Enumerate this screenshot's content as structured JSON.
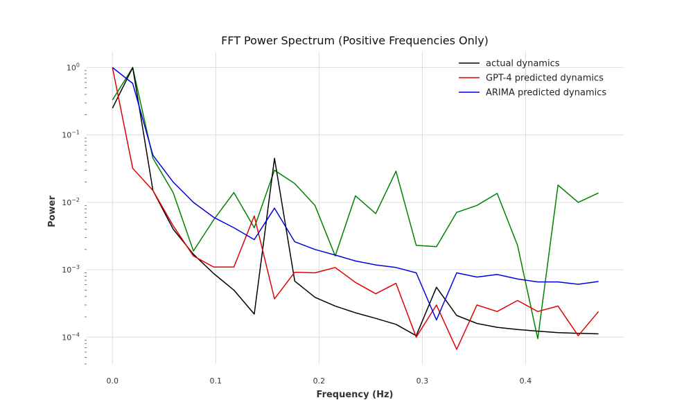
{
  "chart_data": {
    "type": "line",
    "title": "FFT Power Spectrum (Positive Frequencies Only)",
    "xlabel": "Frequency (Hz)",
    "ylabel": "Power",
    "yscale": "log",
    "xlim": [
      -0.025,
      0.495
    ],
    "ylim": [
      4e-05,
      1.7
    ],
    "x_ticks": [
      0.0,
      0.1,
      0.2,
      0.3,
      0.4
    ],
    "x_tick_labels": [
      "0.0",
      "0.1",
      "0.2",
      "0.3",
      "0.4"
    ],
    "y_ticks": [
      0.0001,
      0.001,
      0.01,
      0.1,
      1
    ],
    "grid": true,
    "legend": "top-right",
    "x": [
      0.0,
      0.0196,
      0.0392,
      0.0588,
      0.0784,
      0.098,
      0.1176,
      0.1373,
      0.1569,
      0.1765,
      0.1961,
      0.2157,
      0.2353,
      0.2549,
      0.2745,
      0.2941,
      0.3137,
      0.3333,
      0.3529,
      0.3725,
      0.3922,
      0.4118,
      0.4314,
      0.451,
      0.4706
    ],
    "series": [
      {
        "name": "actual dynamics",
        "color": "#000000",
        "values": [
          0.25,
          1.0,
          0.015,
          0.004,
          0.0017,
          0.00088,
          0.0005,
          0.00022,
          0.045,
          0.00068,
          0.00039,
          0.00029,
          0.00023,
          0.00019,
          0.000155,
          0.000105,
          0.00055,
          0.00021,
          0.00016,
          0.00014,
          0.00013,
          0.000123,
          0.000117,
          0.000114,
          0.000112
        ]
      },
      {
        "name": "GPT-4 predicted dynamics",
        "color": "#e00000",
        "values": [
          1.0,
          0.032,
          0.015,
          0.0045,
          0.0016,
          0.0011,
          0.0011,
          0.0063,
          0.00037,
          0.00092,
          0.0009,
          0.00108,
          0.00065,
          0.00044,
          0.00063,
          0.0001,
          0.0003,
          6.6e-05,
          0.0003,
          0.00024,
          0.00035,
          0.00024,
          0.00029,
          0.000105,
          0.00024
        ]
      },
      {
        "name": "ARIMA predicted dynamics",
        "color": "#0000e0",
        "values": [
          1.0,
          0.58,
          0.05,
          0.02,
          0.01,
          0.006,
          0.0042,
          0.0028,
          0.0082,
          0.0026,
          0.002,
          0.00165,
          0.00135,
          0.00118,
          0.00108,
          0.0009,
          0.00018,
          0.0009,
          0.00078,
          0.00085,
          0.00073,
          0.00066,
          0.00066,
          0.00061,
          0.00067
        ]
      },
      {
        "color": "#008000",
        "values": [
          0.33,
          1.0,
          0.045,
          0.014,
          0.0019,
          0.0055,
          0.014,
          0.0042,
          0.03,
          0.019,
          0.009,
          0.0016,
          0.0125,
          0.0068,
          0.029,
          0.0023,
          0.0022,
          0.0071,
          0.009,
          0.0136,
          0.0023,
          9.5e-05,
          0.018,
          0.01,
          0.0138
        ]
      }
    ]
  }
}
